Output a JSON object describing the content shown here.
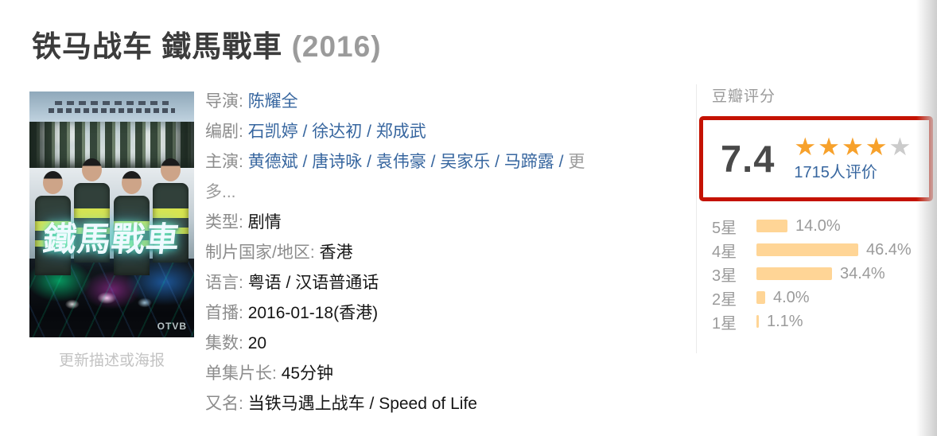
{
  "header": {
    "title": "铁马战车 鐵馬戰車",
    "year": "(2016)"
  },
  "poster": {
    "overlay_title": "鐵馬戰車",
    "logo_text": "OTVB",
    "caption": "更新描述或海报"
  },
  "info": {
    "separator": "/",
    "director": {
      "label": "导演:",
      "name": "陈耀全"
    },
    "writers": {
      "label": "编剧:",
      "names": [
        "石凯婷",
        "徐达初",
        "郑成武"
      ]
    },
    "cast": {
      "label": "主演:",
      "names": [
        "黄德斌",
        "唐诗咏",
        "袁伟豪",
        "吴家乐",
        "马蹄露"
      ],
      "more": "更多..."
    },
    "genre": {
      "label": "类型:",
      "value": "剧情"
    },
    "region": {
      "label": "制片国家/地区:",
      "value": "香港"
    },
    "language": {
      "label": "语言:",
      "value": "粤语 / 汉语普通话"
    },
    "premiere": {
      "label": "首播:",
      "value": "2016-01-18(香港)"
    },
    "episodes": {
      "label": "集数:",
      "value": "20"
    },
    "duration": {
      "label": "单集片长:",
      "value": "45分钟"
    },
    "aka": {
      "label": "又名:",
      "value": "当铁马遇上战车 / Speed of Life"
    }
  },
  "rating": {
    "section_title": "豆瓣评分",
    "score": "7.4",
    "stars_filled": 4,
    "stars_total": 5,
    "votes_text": "1715人评价",
    "distribution": [
      {
        "label": "5星",
        "percent": "14.0%",
        "value": 14.0
      },
      {
        "label": "4星",
        "percent": "46.4%",
        "value": 46.4
      },
      {
        "label": "3星",
        "percent": "34.4%",
        "value": 34.4
      },
      {
        "label": "2星",
        "percent": "4.0%",
        "value": 4.0
      },
      {
        "label": "1星",
        "percent": "1.1%",
        "value": 1.1
      }
    ],
    "colors": {
      "star_orange": "#f7a12b",
      "star_gray": "#cbcbcb",
      "bar_fill": "#ffd596",
      "highlight_red": "#c41200",
      "link_blue": "#37669f"
    }
  }
}
